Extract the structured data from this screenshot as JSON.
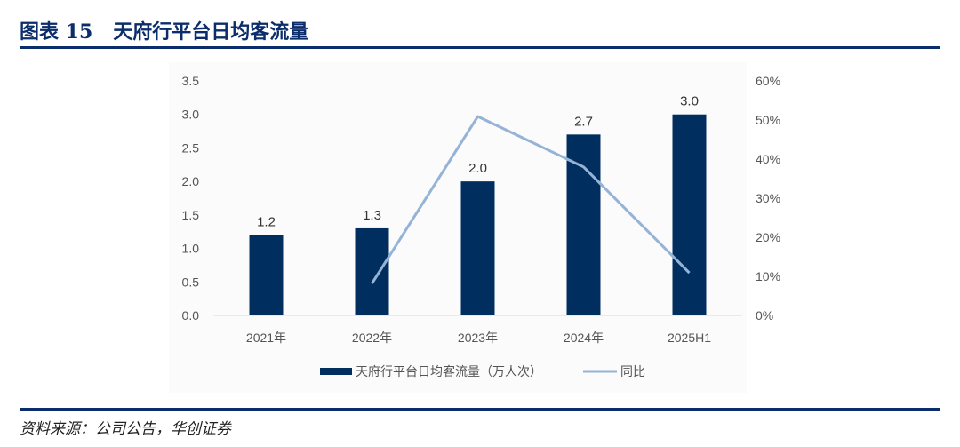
{
  "header": {
    "title": "图表 15   天府行平台日均客流量"
  },
  "footer": {
    "source": "资料来源：公司公告，华创证券"
  },
  "chart_data": {
    "type": "bar+line",
    "title": "天府行平台日均客流量",
    "categories": [
      "2021年",
      "2022年",
      "2023年",
      "2024年",
      "2025H1"
    ],
    "series": [
      {
        "name": "天府行平台日均客流量（万人次）",
        "type": "bar",
        "axis": "left",
        "values": [
          1.2,
          1.3,
          2.0,
          2.7,
          3.0
        ],
        "labels": [
          "1.2",
          "1.3",
          "2.0",
          "2.7",
          "3.0"
        ],
        "color": "#002f5f"
      },
      {
        "name": "同比",
        "type": "line",
        "axis": "right",
        "values": [
          null,
          8.2,
          50.9,
          38.0,
          10.9
        ],
        "color": "#95b3d7"
      }
    ],
    "left_axis": {
      "ylim": [
        0,
        3.5
      ],
      "ticks": [
        "0.0",
        "0.5",
        "1.0",
        "1.5",
        "2.0",
        "2.5",
        "3.0",
        "3.5"
      ]
    },
    "right_axis": {
      "ylim": [
        0,
        60
      ],
      "ticks": [
        "0%",
        "10%",
        "20%",
        "30%",
        "40%",
        "50%",
        "60%"
      ]
    },
    "legend": "bottom",
    "grid": false
  }
}
